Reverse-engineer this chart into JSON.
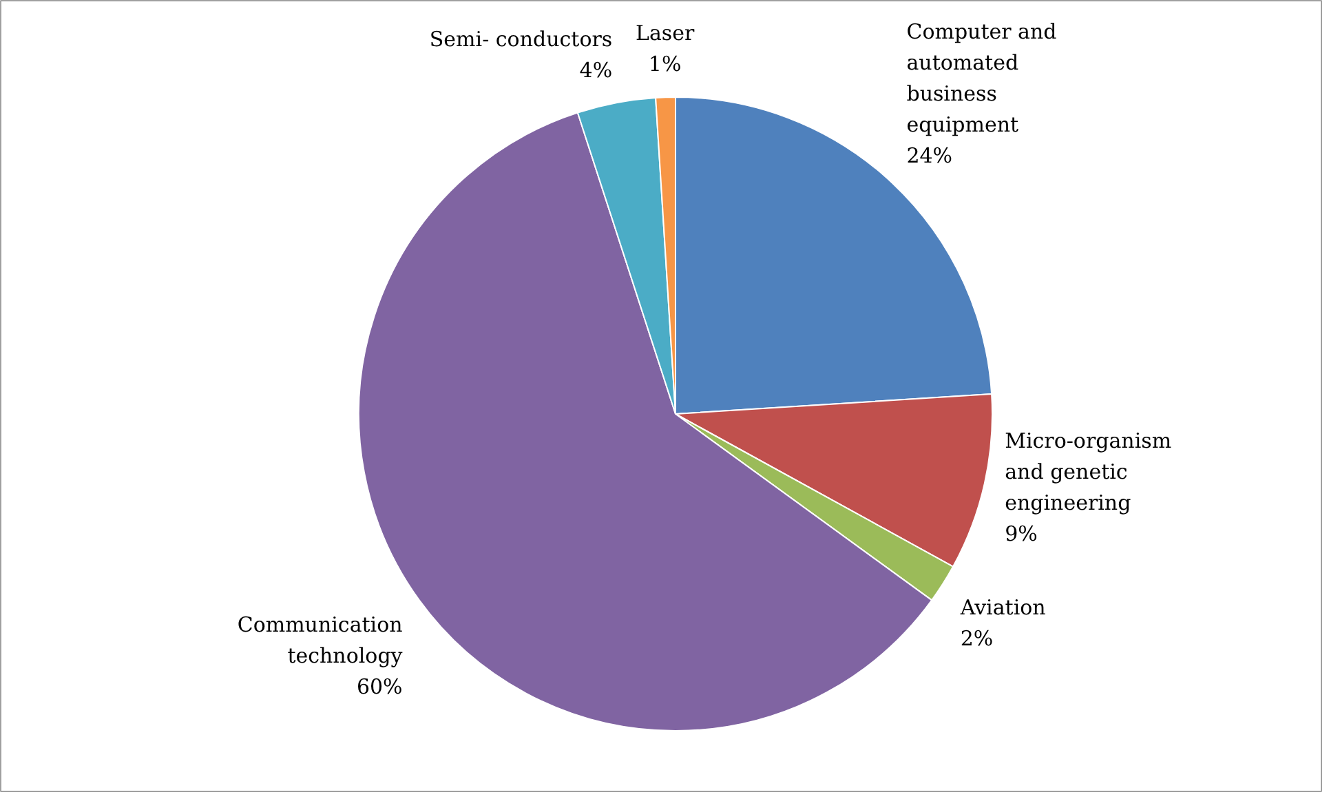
{
  "chart_data": {
    "type": "pie",
    "categories": [
      "Computer and automated business equipment",
      "Micro-organism and genetic engineering",
      "Aviation",
      "Communication technology",
      "Semi- conductors",
      "Laser"
    ],
    "values": [
      24,
      9,
      2,
      60,
      4,
      1
    ],
    "value_labels": [
      "24%",
      "9%",
      "2%",
      "60%",
      "4%",
      "1%"
    ],
    "colors": [
      "#4f81bd",
      "#c0504d",
      "#9bbb59",
      "#8064a2",
      "#4bacc6",
      "#f79646"
    ]
  }
}
